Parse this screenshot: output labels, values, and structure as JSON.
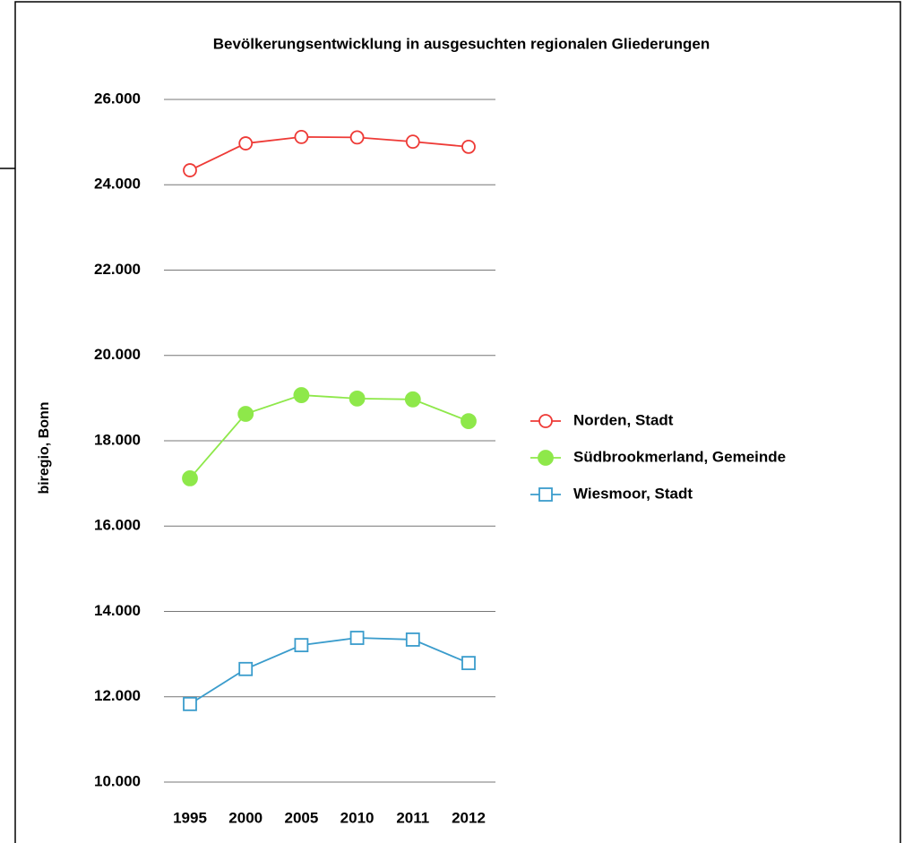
{
  "chart_data": {
    "type": "line",
    "title": "Bevölkerungsentwicklung in ausgesuchten regionalen Gliederungen",
    "y_label": "biregio, Bonn",
    "categories": [
      "1995",
      "2000",
      "2005",
      "2010",
      "2011",
      "2012"
    ],
    "series": [
      {
        "name": "Norden, Stadt",
        "color": "#ee3a36",
        "marker": "open-circle",
        "values": [
          24340,
          24970,
          25120,
          25110,
          25010,
          24890
        ]
      },
      {
        "name": "Südbrookmerland, Gemeinde",
        "color": "#8ee84a",
        "marker": "filled-circle",
        "values": [
          17120,
          18630,
          19070,
          18990,
          18970,
          18460
        ]
      },
      {
        "name": "Wiesmoor, Stadt",
        "color": "#3a9ccc",
        "marker": "open-square",
        "values": [
          11830,
          12650,
          13210,
          13380,
          13340,
          12790
        ]
      }
    ],
    "ylim": [
      10000,
      26000
    ],
    "yticks": [
      {
        "value": 10000,
        "label": "10.000"
      },
      {
        "value": 12000,
        "label": "12.000"
      },
      {
        "value": 14000,
        "label": "14.000"
      },
      {
        "value": 16000,
        "label": "16.000"
      },
      {
        "value": 18000,
        "label": "18.000"
      },
      {
        "value": 20000,
        "label": "20.000"
      },
      {
        "value": 22000,
        "label": "22.000"
      },
      {
        "value": 24000,
        "label": "24.000"
      },
      {
        "value": 26000,
        "label": "26.000"
      }
    ],
    "grid": true,
    "legend": "right"
  }
}
